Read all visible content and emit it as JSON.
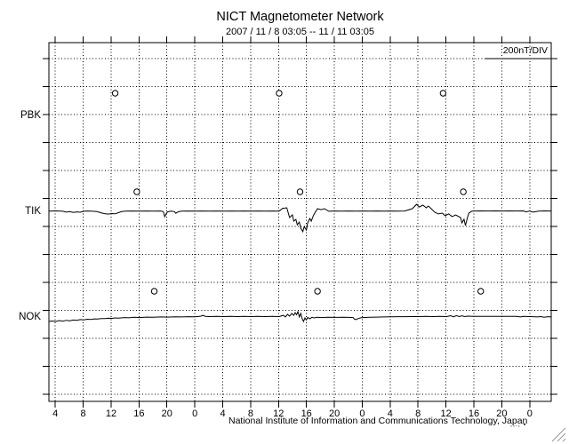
{
  "window": {
    "colors": {
      "foreground": "#000000",
      "background": "#ffffff"
    }
  },
  "chart_data": {
    "type": "line",
    "title": "NICT Magnetometer Network",
    "subtitle": "2007 / 11 / 8  03:05 -- 11 / 11  03:05",
    "scale_label": "200nT/DIV",
    "footer": "National Institute of Information and Communications Technology, Japan",
    "footer_tail": ",,.,  ▪",
    "grid": "dotted",
    "legend_position": "top-right",
    "x_axis": {
      "start": "2007/11/8 03:05",
      "end": "2007/11/11 03:05",
      "total_hours": 72,
      "first_tick_hour": 0.9167,
      "tick_interval_hours": 4,
      "tick_labels": [
        "4",
        "8",
        "12",
        "16",
        "20",
        "0",
        "4",
        "8",
        "12",
        "16",
        "20",
        "0",
        "4",
        "8",
        "12",
        "16",
        "20",
        "0"
      ]
    },
    "y_axis": {
      "division_label": "200nT/DIV",
      "nT_per_division": 200,
      "unit": "nT",
      "values_relative_to_station_baseline": true
    },
    "stations_order": [
      "PBK",
      "TIK",
      "NOK"
    ],
    "series": [
      {
        "name": "PBK",
        "no_data": true,
        "day_marker_hours": [
          9.5,
          33.0,
          56.5
        ],
        "points": []
      },
      {
        "name": "TIK",
        "no_data": false,
        "day_marker_hours": [
          12.6,
          36.0,
          59.4
        ],
        "points": [
          [
            0,
            -5
          ],
          [
            1,
            -3
          ],
          [
            2,
            -6
          ],
          [
            2.5,
            -12
          ],
          [
            3,
            -8
          ],
          [
            3.5,
            -14
          ],
          [
            4,
            -10
          ],
          [
            4.5,
            -13
          ],
          [
            5,
            -6
          ],
          [
            5.5,
            -4
          ],
          [
            6,
            -5
          ],
          [
            6.9,
            -8
          ],
          [
            7.4,
            -16
          ],
          [
            7.9,
            -22
          ],
          [
            8.5,
            -26
          ],
          [
            9,
            -22
          ],
          [
            9.5,
            -24
          ],
          [
            10,
            -15
          ],
          [
            10.4,
            -8
          ],
          [
            11,
            -5
          ],
          [
            12,
            -4
          ],
          [
            13,
            -5
          ],
          [
            14,
            -4
          ],
          [
            15,
            -5
          ],
          [
            16,
            -4
          ],
          [
            16.4,
            -8
          ],
          [
            16.6,
            -45
          ],
          [
            16.8,
            -25
          ],
          [
            17,
            -10
          ],
          [
            17.5,
            -5
          ],
          [
            18,
            -8
          ],
          [
            18.2,
            -20
          ],
          [
            18.5,
            -10
          ],
          [
            19,
            -5
          ],
          [
            20,
            -4
          ],
          [
            21,
            -5
          ],
          [
            22,
            -4
          ],
          [
            23,
            -5
          ],
          [
            24,
            -4
          ],
          [
            25,
            -5
          ],
          [
            26,
            -4
          ],
          [
            27,
            -5
          ],
          [
            28,
            -4
          ],
          [
            29,
            -5
          ],
          [
            30,
            -4
          ],
          [
            31,
            -5
          ],
          [
            32,
            -4
          ],
          [
            33,
            -5
          ],
          [
            33.5,
            15
          ],
          [
            34.1,
            19
          ],
          [
            34.5,
            -51
          ],
          [
            34.9,
            -32
          ],
          [
            35.1,
            -76
          ],
          [
            35.4,
            -64
          ],
          [
            35.6,
            -102
          ],
          [
            35.9,
            -83
          ],
          [
            36.1,
            -127
          ],
          [
            36.4,
            -152
          ],
          [
            36.6,
            -114
          ],
          [
            36.9,
            -140
          ],
          [
            37.1,
            -89
          ],
          [
            37.4,
            -57
          ],
          [
            37.6,
            -76
          ],
          [
            37.9,
            -38
          ],
          [
            38.1,
            -19
          ],
          [
            38.5,
            13
          ],
          [
            39,
            6
          ],
          [
            39.5,
            13
          ],
          [
            40.1,
            -6
          ],
          [
            41,
            -4
          ],
          [
            42,
            -5
          ],
          [
            43,
            -4
          ],
          [
            44,
            -5
          ],
          [
            45,
            -4
          ],
          [
            46,
            -5
          ],
          [
            47,
            -4
          ],
          [
            48,
            -5
          ],
          [
            49,
            -4
          ],
          [
            50,
            -5
          ],
          [
            51,
            -4
          ],
          [
            52.1,
            13
          ],
          [
            52.7,
            44
          ],
          [
            53.1,
            25
          ],
          [
            53.6,
            38
          ],
          [
            54.1,
            19
          ],
          [
            54.4,
            32
          ],
          [
            54.8,
            13
          ],
          [
            55.3,
            -13
          ],
          [
            55.8,
            -25
          ],
          [
            56.4,
            -19
          ],
          [
            56.8,
            -38
          ],
          [
            57.3,
            -25
          ],
          [
            57.8,
            -44
          ],
          [
            58.3,
            -32
          ],
          [
            59,
            -51
          ],
          [
            59.2,
            -89
          ],
          [
            59.5,
            -63
          ],
          [
            59.7,
            -108
          ],
          [
            60,
            -51
          ],
          [
            60.2,
            -19
          ],
          [
            60.6,
            -6
          ],
          [
            61,
            -4
          ],
          [
            62,
            -3
          ],
          [
            63,
            -4
          ],
          [
            64,
            -3
          ],
          [
            65,
            -4
          ],
          [
            66,
            -3
          ],
          [
            67,
            -4
          ],
          [
            68,
            -3
          ],
          [
            68.4,
            -10
          ],
          [
            68.9,
            -4
          ],
          [
            69.4,
            -12
          ],
          [
            70.2,
            -5
          ],
          [
            71,
            -3
          ],
          [
            72,
            -4
          ]
        ]
      },
      {
        "name": "NOK",
        "no_data": false,
        "day_marker_hours": [
          15.1,
          38.5,
          61.9
        ],
        "points": [
          [
            0,
            -38
          ],
          [
            0.5,
            -35
          ],
          [
            1,
            -38
          ],
          [
            1.5,
            -32
          ],
          [
            2,
            -36
          ],
          [
            2.5,
            -30
          ],
          [
            3,
            -33
          ],
          [
            3.5,
            -28
          ],
          [
            4,
            -30
          ],
          [
            4.5,
            -25
          ],
          [
            5,
            -27
          ],
          [
            5.5,
            -22
          ],
          [
            6,
            -24
          ],
          [
            6.5,
            -20
          ],
          [
            7,
            -21
          ],
          [
            7.5,
            -17
          ],
          [
            8,
            -18
          ],
          [
            8.5,
            -15
          ],
          [
            9,
            -16
          ],
          [
            9.5,
            -13
          ],
          [
            10,
            -14
          ],
          [
            10.8,
            -10
          ],
          [
            11.5,
            -12
          ],
          [
            12.2,
            -8
          ],
          [
            13,
            -10
          ],
          [
            14,
            -7
          ],
          [
            15,
            -8
          ],
          [
            16,
            -6
          ],
          [
            17,
            -7
          ],
          [
            18,
            -5
          ],
          [
            19,
            -6
          ],
          [
            20,
            -4
          ],
          [
            21,
            -5
          ],
          [
            21.8,
            0
          ],
          [
            22.1,
            6
          ],
          [
            22.4,
            -2
          ],
          [
            23,
            -3
          ],
          [
            24,
            -2
          ],
          [
            25,
            -3
          ],
          [
            26,
            -2
          ],
          [
            27,
            -3
          ],
          [
            28,
            -2
          ],
          [
            29,
            -3
          ],
          [
            30,
            -2
          ],
          [
            31,
            -3
          ],
          [
            32,
            -2
          ],
          [
            33,
            -3
          ],
          [
            33.6,
            6
          ],
          [
            33.9,
            -6
          ],
          [
            34.2,
            13
          ],
          [
            34.5,
            0
          ],
          [
            34.8,
            19
          ],
          [
            35.1,
            6
          ],
          [
            35.3,
            25
          ],
          [
            35.5,
            10
          ],
          [
            35.7,
            32
          ],
          [
            35.9,
            -6
          ],
          [
            36.1,
            19
          ],
          [
            36.3,
            -19
          ],
          [
            36.5,
            -38
          ],
          [
            36.7,
            -13
          ],
          [
            36.9,
            -28
          ],
          [
            37.1,
            -9
          ],
          [
            37.4,
            -19
          ],
          [
            37.7,
            -8
          ],
          [
            38,
            -13
          ],
          [
            38.5,
            -8
          ],
          [
            39,
            -10
          ],
          [
            40,
            -8
          ],
          [
            41,
            -9
          ],
          [
            42,
            -8
          ],
          [
            43,
            -9
          ],
          [
            43.6,
            -10
          ],
          [
            43.8,
            -21
          ],
          [
            44,
            -25
          ],
          [
            44.3,
            -18
          ],
          [
            44.7,
            -12
          ],
          [
            45,
            -10
          ],
          [
            46,
            -8
          ],
          [
            47,
            -7
          ],
          [
            48,
            -6
          ],
          [
            49,
            -5
          ],
          [
            50,
            -4
          ],
          [
            51,
            -4
          ],
          [
            52,
            -3
          ],
          [
            53,
            -3
          ],
          [
            54,
            -2
          ],
          [
            55,
            -3
          ],
          [
            56,
            -2
          ],
          [
            57,
            -3
          ],
          [
            57.6,
            3
          ],
          [
            58,
            -5
          ],
          [
            58.4,
            4
          ],
          [
            58.8,
            -3
          ],
          [
            59.2,
            2
          ],
          [
            59.6,
            -3
          ],
          [
            60,
            0
          ],
          [
            61,
            -1
          ],
          [
            62,
            -2
          ],
          [
            63,
            -1
          ],
          [
            64,
            -2
          ],
          [
            65,
            -1
          ],
          [
            66,
            -2
          ],
          [
            67,
            -1
          ],
          [
            67.6,
            -6
          ],
          [
            68,
            -2
          ],
          [
            69,
            -3
          ],
          [
            70,
            -6
          ],
          [
            70.5,
            -3
          ],
          [
            71,
            -8
          ],
          [
            71.5,
            -4
          ],
          [
            72,
            -6
          ]
        ]
      }
    ]
  }
}
